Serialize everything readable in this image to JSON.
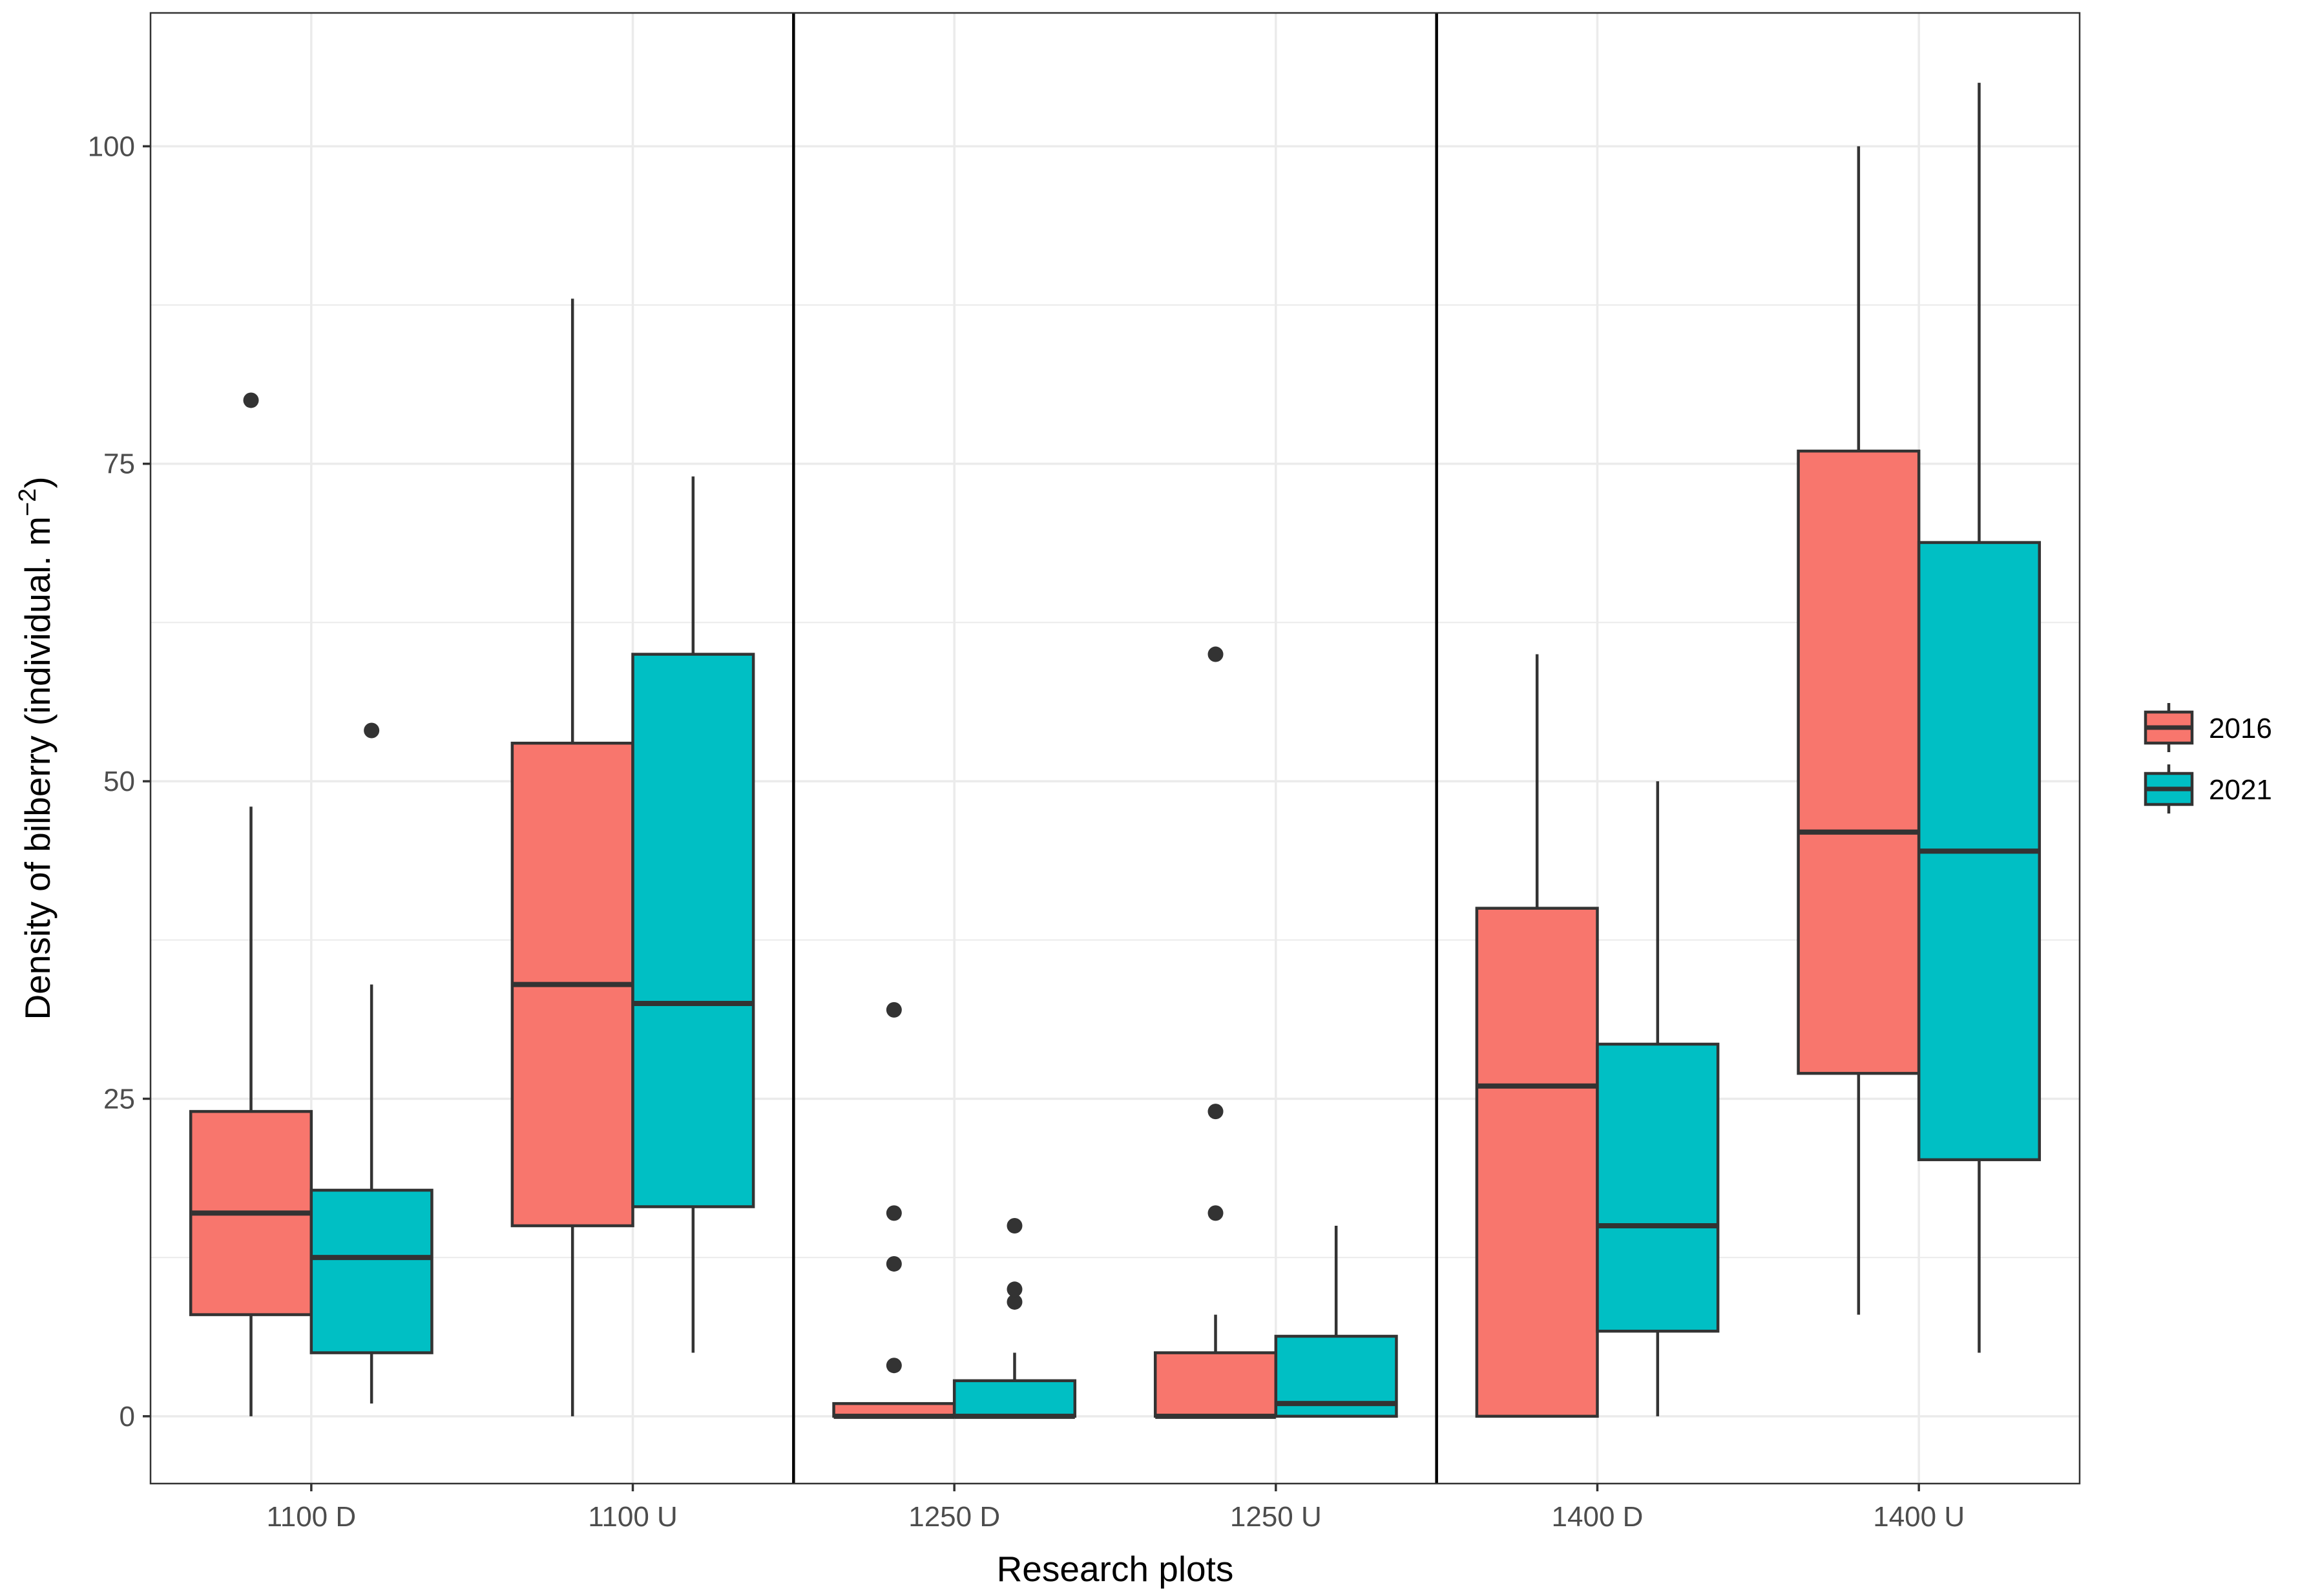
{
  "chart_data": {
    "type": "boxplot",
    "title": "",
    "xlabel": "Research plots",
    "ylabel": "Density of bilberry (individual. m",
    "ylabel_superscript": "−2",
    "ylabel_close": ")",
    "ylim": [
      -5.3,
      110.5
    ],
    "yticks": [
      0,
      25,
      50,
      75,
      100
    ],
    "ytick_labels": [
      "0",
      "25",
      "50",
      "75",
      "100"
    ],
    "grid": true,
    "categories": [
      "1100 D",
      "1100 U",
      "1250 D",
      "1250 U",
      "1400 D",
      "1400 U"
    ],
    "separator_lines_after_category": [
      2,
      4
    ],
    "legend_position": "right",
    "series": [
      {
        "name": "2016",
        "color": "#F8766D",
        "boxes": [
          {
            "category": "1100 D",
            "min": 0,
            "q1": 8,
            "median": 16,
            "q3": 24,
            "max": 48,
            "outliers": [
              80
            ]
          },
          {
            "category": "1100 U",
            "min": 0,
            "q1": 15,
            "median": 34,
            "q3": 53,
            "max": 88,
            "outliers": []
          },
          {
            "category": "1250 D",
            "min": 0,
            "q1": 0,
            "median": 0,
            "q3": 1,
            "max": 1,
            "outliers": [
              4,
              12,
              16,
              32
            ]
          },
          {
            "category": "1250 U",
            "min": 0,
            "q1": 0,
            "median": 0,
            "q3": 5,
            "max": 8,
            "outliers": [
              16,
              24,
              60
            ]
          },
          {
            "category": "1400 D",
            "min": 0,
            "q1": 0,
            "median": 26,
            "q3": 40,
            "max": 60,
            "outliers": []
          },
          {
            "category": "1400 U",
            "min": 8,
            "q1": 27,
            "median": 46,
            "q3": 76,
            "max": 100,
            "outliers": []
          }
        ]
      },
      {
        "name": "2021",
        "color": "#00BFC4",
        "boxes": [
          {
            "category": "1100 D",
            "min": 1,
            "q1": 5,
            "median": 12.5,
            "q3": 17.8,
            "max": 34,
            "outliers": [
              54
            ]
          },
          {
            "category": "1100 U",
            "min": 5,
            "q1": 16.5,
            "median": 32.5,
            "q3": 60,
            "max": 74,
            "outliers": []
          },
          {
            "category": "1250 D",
            "min": 0,
            "q1": 0,
            "median": 0,
            "q3": 2.8,
            "max": 5,
            "outliers": [
              9,
              10,
              15
            ]
          },
          {
            "category": "1250 U",
            "min": 0,
            "q1": 0,
            "median": 1,
            "q3": 6.3,
            "max": 15,
            "outliers": []
          },
          {
            "category": "1400 D",
            "min": 0,
            "q1": 6.7,
            "median": 15,
            "q3": 29.3,
            "max": 50,
            "outliers": []
          },
          {
            "category": "1400 U",
            "min": 5,
            "q1": 20.2,
            "median": 44.5,
            "q3": 68.8,
            "max": 105,
            "outliers": []
          }
        ]
      }
    ]
  }
}
